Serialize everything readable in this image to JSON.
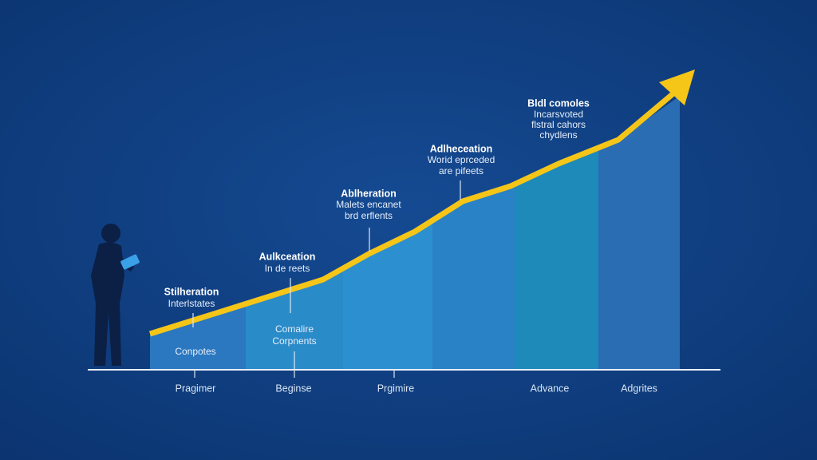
{
  "axis_labels": [
    "Pragimer",
    "Beginse",
    "Prgimire",
    "Advance",
    "Adgrites"
  ],
  "annotations": [
    {
      "title": "Stilheration",
      "lines": [
        "Interlstates"
      ]
    },
    {
      "title": "Aulkceation",
      "lines": [
        "In de reets"
      ]
    },
    {
      "title": "Ablheration",
      "lines": [
        "Malets encanet",
        "brd erflents"
      ]
    },
    {
      "title": "Adlheceation",
      "lines": [
        "Worid eprceded",
        "are pifeets"
      ]
    },
    {
      "title": "Bldl comoles",
      "lines": [
        "Incarsvoted",
        "flstral cahors",
        "chydlens"
      ]
    }
  ],
  "segment_labels": [
    {
      "lines": [
        "Conpotes"
      ]
    },
    {
      "lines": [
        "Comalire",
        "Corpnents"
      ]
    }
  ]
}
